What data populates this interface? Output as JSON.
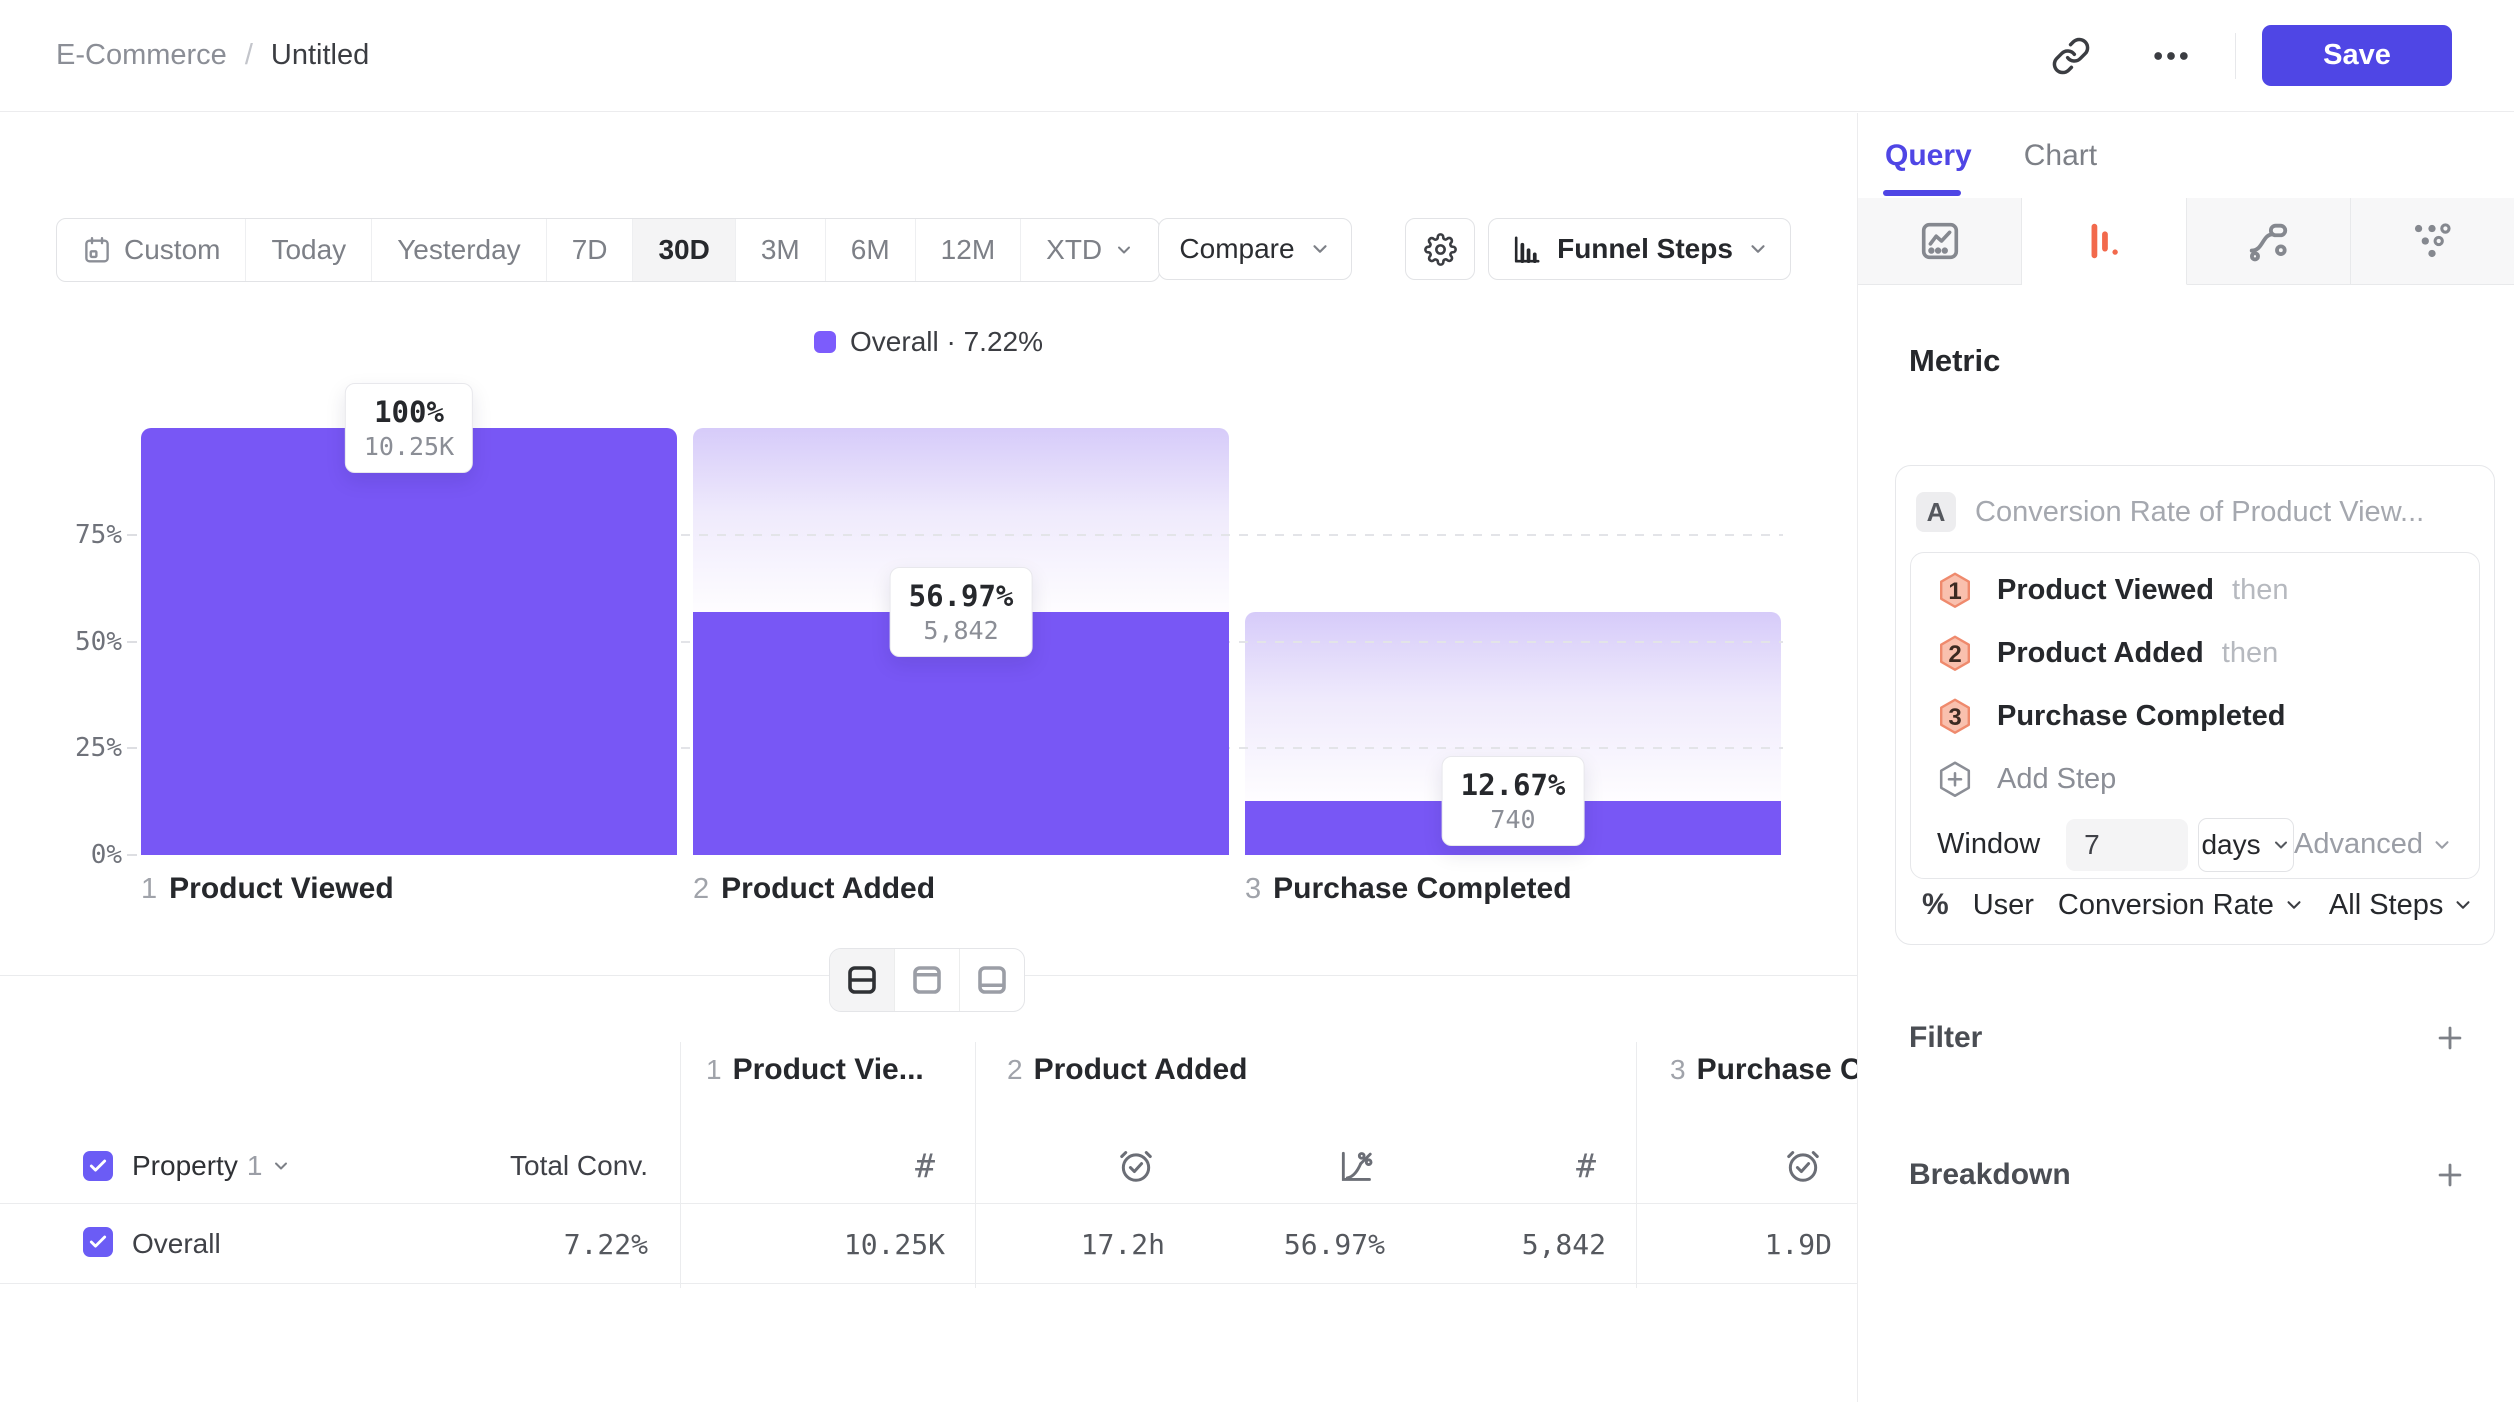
{
  "topbar": {
    "breadcrumb": {
      "parent": "E-Commerce",
      "separator": "/",
      "current": "Untitled"
    },
    "save_label": "Save"
  },
  "toolbar": {
    "date_ranges": [
      "Custom",
      "Today",
      "Yesterday",
      "7D",
      "30D",
      "3M",
      "6M",
      "12M",
      "XTD"
    ],
    "selected_range": "30D",
    "calendar_icon_on": "Custom",
    "dropdown_on": "XTD",
    "compare_label": "Compare",
    "chart_type_label": "Funnel Steps"
  },
  "chart_data": {
    "type": "funnel-bar",
    "legend": {
      "name": "Overall",
      "value": "7.22%"
    },
    "ylabel_ticks": [
      0,
      25,
      50,
      75
    ],
    "ylim": [
      0,
      100
    ],
    "grid": "dashed-horizontal",
    "steps": [
      {
        "index": 1,
        "label": "Product Viewed",
        "conversion_pct": 100,
        "pct_label": "100%",
        "count": 10250,
        "count_label": "10.25K",
        "from_prev_pct": 100
      },
      {
        "index": 2,
        "label": "Product Added",
        "conversion_pct": 56.97,
        "pct_label": "56.97%",
        "count": 5842,
        "count_label": "5,842",
        "from_prev_pct": 100
      },
      {
        "index": 3,
        "label": "Purchase Completed",
        "conversion_pct": 12.67,
        "pct_label": "12.67%",
        "count": 740,
        "count_label": "740",
        "from_prev_pct": 56.97
      }
    ]
  },
  "view_toggle": {
    "options": [
      "split-horizontal",
      "top-panel",
      "bottom-panel"
    ],
    "selected": "split-horizontal"
  },
  "table": {
    "property_label": "Property",
    "property_index": "1",
    "total_conv_header": "Total Conv.",
    "groups": [
      {
        "num": "1",
        "label": "Product Vie...",
        "columns": [
          {
            "icon": "hash",
            "value": "10.25K"
          }
        ]
      },
      {
        "num": "2",
        "label": "Product Added",
        "columns": [
          {
            "icon": "clock-check",
            "value": "17.2h"
          },
          {
            "icon": "chart-percent",
            "value": "56.97%"
          },
          {
            "icon": "hash",
            "value": "5,842"
          }
        ]
      },
      {
        "num": "3",
        "label": "Purchase C",
        "columns": [
          {
            "icon": "clock-check",
            "value": "1.9D"
          }
        ]
      }
    ],
    "row": {
      "label": "Overall",
      "total_conversion": "7.22%",
      "checked": true
    }
  },
  "panel": {
    "tabs": [
      {
        "label": "Query",
        "active": true
      },
      {
        "label": "Chart",
        "active": false
      }
    ],
    "icon_tabs": [
      {
        "name": "segmentation-chart",
        "active": false
      },
      {
        "name": "funnel",
        "active": true
      },
      {
        "name": "retention-flow",
        "active": false
      },
      {
        "name": "pathfinder-dots",
        "active": false
      }
    ],
    "metric_heading": "Metric",
    "metric_card": {
      "badge": "A",
      "title": "Conversion Rate of Product View...",
      "steps": [
        {
          "num": "1",
          "label": "Product Viewed",
          "connector": "then"
        },
        {
          "num": "2",
          "label": "Product Added",
          "connector": "then"
        },
        {
          "num": "3",
          "label": "Purchase Completed",
          "connector": ""
        }
      ],
      "add_step_label": "Add Step",
      "window": {
        "label": "Window",
        "value": "7",
        "unit": "days"
      },
      "advanced_label": "Advanced",
      "measure": {
        "symbol": "%",
        "entity": "User",
        "metric": "Conversion Rate",
        "scope": "All Steps"
      }
    },
    "sections": [
      {
        "label": "Filter"
      },
      {
        "label": "Breakdown"
      }
    ]
  },
  "colors": {
    "accent": "#4f46e5",
    "bar": "#7857f5",
    "bar_ghost_top": "#d6cbf9",
    "legend_swatch": "#7c5cfc",
    "checkbox": "#6b5cf5",
    "funnel_tab_active": "#f2694c",
    "step_badge_fill": "#f9c0ae",
    "step_badge_stroke": "#ef8a6d"
  }
}
